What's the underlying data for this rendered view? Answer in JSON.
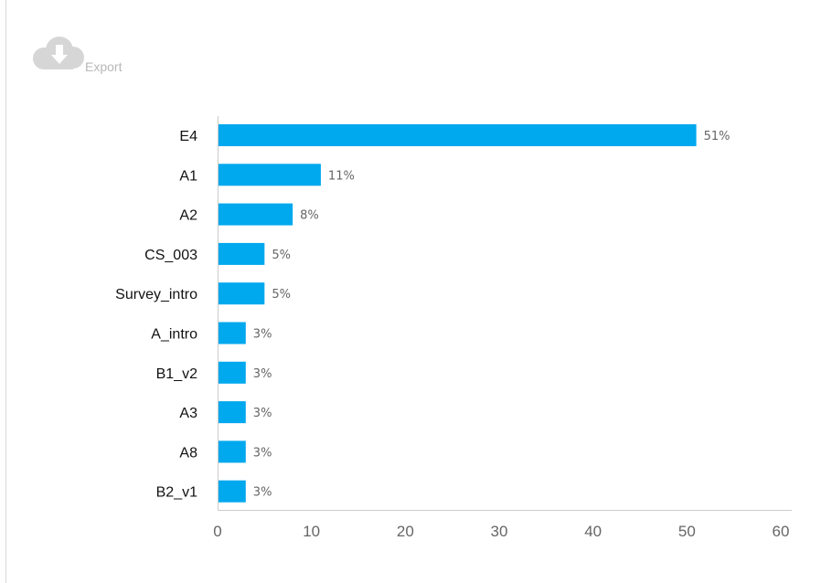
{
  "toolbar": {
    "export_label": "Export",
    "export_icon": "cloud-download-icon",
    "icon_color": "#d6d6d6"
  },
  "chart_data": {
    "type": "bar",
    "orientation": "horizontal",
    "categories": [
      "E4",
      "A1",
      "A2",
      "CS_003",
      "Survey_intro",
      "A_intro",
      "B1_v2",
      "A3",
      "A8",
      "B2_v1"
    ],
    "values": [
      51,
      11,
      8,
      5,
      5,
      3,
      3,
      3,
      3,
      3
    ],
    "value_labels": [
      "51%",
      "11%",
      "8%",
      "5%",
      "5%",
      "3%",
      "3%",
      "3%",
      "3%",
      "3%"
    ],
    "xlim": [
      0,
      60
    ],
    "xticks": [
      0,
      10,
      20,
      30,
      40,
      50,
      60
    ],
    "title": "",
    "xlabel": "",
    "ylabel": "",
    "grid": false,
    "bar_color": "#00a8ee",
    "axis_color": "#cccccc"
  }
}
